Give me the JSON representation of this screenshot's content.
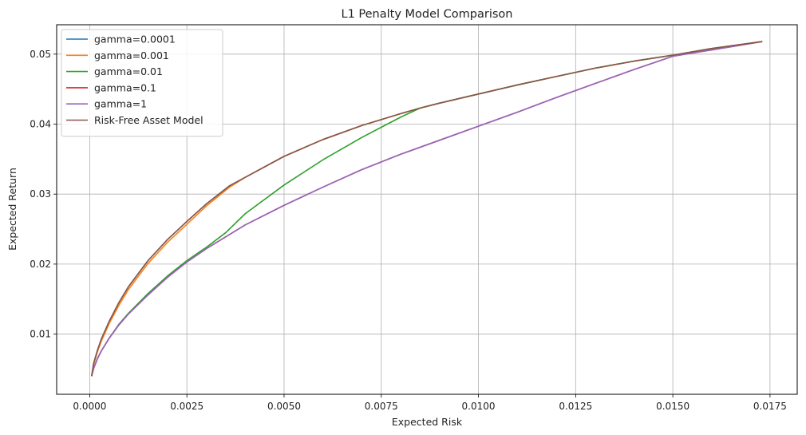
{
  "chart_data": {
    "type": "line",
    "title": "L1 Penalty Model Comparison",
    "xlabel": "Expected Risk",
    "ylabel": "Expected Return",
    "xlim": [
      -0.00085,
      0.0182
    ],
    "ylim": [
      0.0014,
      0.0542
    ],
    "xticks": [
      0.0,
      0.0025,
      0.005,
      0.0075,
      0.01,
      0.0125,
      0.015,
      0.0175
    ],
    "xtick_labels": [
      "0.0000",
      "0.0025",
      "0.0050",
      "0.0075",
      "0.0100",
      "0.0125",
      "0.0150",
      "0.0175"
    ],
    "yticks": [
      0.01,
      0.02,
      0.03,
      0.04,
      0.05
    ],
    "ytick_labels": [
      "0.01",
      "0.02",
      "0.03",
      "0.04",
      "0.05"
    ],
    "grid": true,
    "legend_position": "upper-left",
    "series": [
      {
        "name": "gamma=0.0001",
        "color": "#1f77b4",
        "x": [
          5e-05,
          0.0001,
          0.0002,
          0.0003,
          0.0005,
          0.00075,
          0.001,
          0.0015,
          0.002,
          0.0025,
          0.003,
          0.0036,
          0.004,
          0.005,
          0.006,
          0.007,
          0.008,
          0.0085,
          0.009,
          0.01,
          0.011,
          0.012,
          0.013,
          0.014,
          0.015,
          0.016,
          0.0173
        ],
        "y": [
          0.004,
          0.0058,
          0.0077,
          0.0093,
          0.0118,
          0.0145,
          0.0168,
          0.0205,
          0.0235,
          0.0261,
          0.0286,
          0.0312,
          0.0324,
          0.0354,
          0.0378,
          0.0398,
          0.0415,
          0.0423,
          0.043,
          0.0443,
          0.0456,
          0.0468,
          0.048,
          0.049,
          0.04985,
          0.0508,
          0.0518
        ]
      },
      {
        "name": "gamma=0.001",
        "color": "#ff7f0e",
        "x": [
          5e-05,
          0.0001,
          0.0002,
          0.0003,
          0.0005,
          0.00075,
          0.001,
          0.0015,
          0.002,
          0.0025,
          0.003,
          0.0036,
          0.004,
          0.005,
          0.006,
          0.007,
          0.008,
          0.0085,
          0.009,
          0.01,
          0.011,
          0.012,
          0.013,
          0.014,
          0.015,
          0.016,
          0.0173
        ],
        "y": [
          0.004,
          0.0056,
          0.0075,
          0.009,
          0.0115,
          0.0141,
          0.0164,
          0.0201,
          0.0231,
          0.0257,
          0.0283,
          0.031,
          0.0324,
          0.0354,
          0.0378,
          0.0398,
          0.0415,
          0.0423,
          0.043,
          0.0443,
          0.0456,
          0.0468,
          0.048,
          0.049,
          0.04985,
          0.0508,
          0.0518
        ]
      },
      {
        "name": "gamma=0.01",
        "color": "#2ca02c",
        "x": [
          5e-05,
          0.0001,
          0.0002,
          0.0003,
          0.0005,
          0.00075,
          0.001,
          0.0015,
          0.002,
          0.0025,
          0.003,
          0.0035,
          0.004,
          0.005,
          0.006,
          0.007,
          0.008,
          0.0085,
          0.009,
          0.01,
          0.011,
          0.012,
          0.013,
          0.014,
          0.015,
          0.016,
          0.0173
        ],
        "y": [
          0.004,
          0.0051,
          0.0065,
          0.0076,
          0.0094,
          0.0114,
          0.013,
          0.0158,
          0.0183,
          0.0205,
          0.0224,
          0.0245,
          0.0272,
          0.0313,
          0.0349,
          0.0381,
          0.041,
          0.0423,
          0.043,
          0.0443,
          0.0456,
          0.0468,
          0.048,
          0.049,
          0.04985,
          0.0508,
          0.0518
        ]
      },
      {
        "name": "gamma=0.1",
        "color": "#d62728",
        "x": [
          5e-05,
          0.0001,
          0.0002,
          0.0003,
          0.0005,
          0.00075,
          0.001,
          0.0015,
          0.002,
          0.0025,
          0.003,
          0.0035,
          0.004,
          0.005,
          0.006,
          0.007,
          0.008,
          0.009,
          0.01,
          0.011,
          0.012,
          0.013,
          0.014,
          0.015,
          0.016,
          0.0173
        ],
        "y": [
          0.004,
          0.0051,
          0.0065,
          0.0076,
          0.0094,
          0.0113,
          0.0129,
          0.0156,
          0.0181,
          0.0203,
          0.0222,
          0.0239,
          0.0256,
          0.0284,
          0.031,
          0.0335,
          0.0357,
          0.0377,
          0.0397,
          0.0417,
          0.0438,
          0.0458,
          0.0478,
          0.0497,
          0.0506,
          0.0518
        ]
      },
      {
        "name": "gamma=1",
        "color": "#9467bd",
        "x": [
          5e-05,
          0.0001,
          0.0002,
          0.0003,
          0.0005,
          0.00075,
          0.001,
          0.0015,
          0.002,
          0.0025,
          0.003,
          0.0035,
          0.004,
          0.005,
          0.006,
          0.007,
          0.008,
          0.009,
          0.01,
          0.011,
          0.012,
          0.013,
          0.014,
          0.015,
          0.016,
          0.0173
        ],
        "y": [
          0.004,
          0.0051,
          0.0065,
          0.0076,
          0.0094,
          0.0113,
          0.0129,
          0.0156,
          0.0181,
          0.0203,
          0.0222,
          0.0239,
          0.0256,
          0.0284,
          0.031,
          0.0335,
          0.0357,
          0.0377,
          0.0397,
          0.0417,
          0.0438,
          0.0458,
          0.0478,
          0.0497,
          0.0506,
          0.0518
        ]
      },
      {
        "name": "Risk-Free Asset Model",
        "color": "#8c564b",
        "x": [
          5e-05,
          0.0001,
          0.0002,
          0.0003,
          0.0005,
          0.00075,
          0.001,
          0.0015,
          0.002,
          0.0025,
          0.003,
          0.0036,
          0.004,
          0.005,
          0.006,
          0.007,
          0.008,
          0.0085,
          0.009,
          0.01,
          0.011,
          0.012,
          0.013,
          0.014,
          0.015,
          0.016,
          0.0173
        ],
        "y": [
          0.004,
          0.0058,
          0.0077,
          0.0093,
          0.0118,
          0.0145,
          0.0168,
          0.0205,
          0.0235,
          0.0261,
          0.0286,
          0.0312,
          0.0324,
          0.0354,
          0.0378,
          0.0398,
          0.0415,
          0.0423,
          0.043,
          0.0443,
          0.0456,
          0.0468,
          0.048,
          0.049,
          0.04985,
          0.0508,
          0.0518
        ]
      }
    ]
  }
}
